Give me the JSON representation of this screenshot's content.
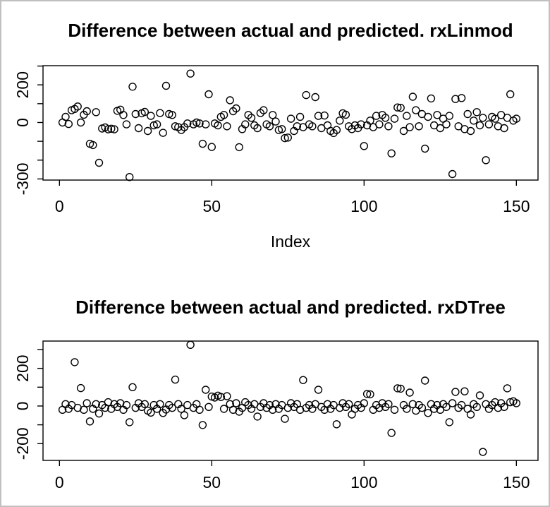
{
  "figure": {
    "background": "#ffffff",
    "border_color": "#c0c0c0",
    "point_color": "#000000",
    "axis_color": "#000000"
  },
  "chart_data": [
    {
      "type": "scatter",
      "title": "Difference between actual and predicted. rxLinmod",
      "xlabel": "Index",
      "ylabel": "",
      "marker": "open-circle",
      "x_range": [
        1,
        150
      ],
      "xlim": [
        -5.4,
        157.1
      ],
      "ylim": [
        -306,
        302
      ],
      "xticks": [
        0,
        50,
        100,
        150
      ],
      "yticks": [
        -300,
        -200,
        -100,
        0,
        100,
        200,
        300
      ],
      "ytick_labels_shown": [
        -300,
        0,
        200
      ],
      "grid": false,
      "values": [
        0,
        30,
        -8,
        65,
        72,
        85,
        0,
        41,
        60,
        -113,
        -120,
        55,
        -214,
        -32,
        -26,
        -36,
        -33,
        -36,
        62,
        68,
        40,
        -10,
        -290,
        190,
        45,
        -30,
        49,
        56,
        -45,
        35,
        -15,
        -10,
        50,
        -55,
        195,
        45,
        40,
        -20,
        -25,
        -40,
        -25,
        -5,
        260,
        -10,
        0,
        -5,
        -113,
        -10,
        150,
        -130,
        -5,
        -15,
        30,
        40,
        -20,
        118,
        60,
        75,
        -131,
        -35,
        -10,
        40,
        25,
        -15,
        -30,
        50,
        65,
        -10,
        -20,
        40,
        5,
        -40,
        -35,
        -83,
        -80,
        20,
        -45,
        -20,
        30,
        -25,
        146,
        -10,
        -20,
        135,
        35,
        -30,
        37,
        -15,
        -45,
        -56,
        -40,
        10,
        49,
        41,
        -20,
        -35,
        -15,
        -30,
        -10,
        -125,
        -15,
        10,
        -25,
        35,
        -10,
        40,
        25,
        -20,
        -164,
        20,
        80,
        78,
        -45,
        35,
        -25,
        137,
        65,
        -20,
        45,
        -139,
        30,
        128,
        -15,
        40,
        -30,
        20,
        -10,
        35,
        -274,
        125,
        -20,
        130,
        -35,
        45,
        -45,
        10,
        55,
        -15,
        25,
        -200,
        -10,
        30,
        20,
        -20,
        40,
        -30,
        25,
        150,
        10,
        20
      ]
    },
    {
      "type": "scatter",
      "title": "Difference between actual and predicted. rxDTree",
      "xlabel": "",
      "ylabel": "",
      "marker": "open-circle",
      "x_range": [
        1,
        150
      ],
      "xlim": [
        -5.4,
        157.1
      ],
      "ylim": [
        -289,
        345
      ],
      "xticks": [
        0,
        50,
        100,
        150
      ],
      "yticks": [
        -200,
        -100,
        0,
        100,
        200,
        300
      ],
      "ytick_labels_shown": [
        -200,
        0,
        200
      ],
      "grid": false,
      "values": [
        -20,
        10,
        -15,
        5,
        233,
        -10,
        95,
        -20,
        15,
        -82,
        -15,
        10,
        -40,
        5,
        -10,
        20,
        -15,
        10,
        -5,
        15,
        -20,
        5,
        -86,
        100,
        -10,
        15,
        -5,
        10,
        -25,
        -35,
        5,
        -15,
        10,
        -37,
        -19,
        5,
        -10,
        140,
        10,
        -15,
        -49,
        5,
        325,
        -10,
        10,
        -20,
        -101,
        86,
        -5,
        50,
        45,
        55,
        48,
        -15,
        52,
        10,
        -20,
        15,
        -30,
        -10,
        20,
        5,
        -15,
        10,
        -56,
        -5,
        15,
        -10,
        5,
        -20,
        10,
        -15,
        5,
        -68,
        -10,
        15,
        -5,
        10,
        -20,
        138,
        -10,
        5,
        -15,
        10,
        86,
        -5,
        -20,
        10,
        -15,
        5,
        -97,
        -10,
        15,
        -5,
        10,
        -45,
        -15,
        5,
        -10,
        15,
        64,
        62,
        -20,
        5,
        -10,
        15,
        -5,
        10,
        -143,
        -20,
        94,
        92,
        5,
        -15,
        71,
        10,
        -25,
        5,
        -10,
        135,
        -37,
        10,
        -15,
        5,
        -20,
        10,
        -5,
        -86,
        15,
        75,
        -10,
        5,
        78,
        -15,
        -45,
        10,
        -5,
        56,
        -244,
        10,
        -15,
        5,
        20,
        -10,
        15,
        -5,
        94,
        20,
        25,
        15
      ]
    }
  ]
}
